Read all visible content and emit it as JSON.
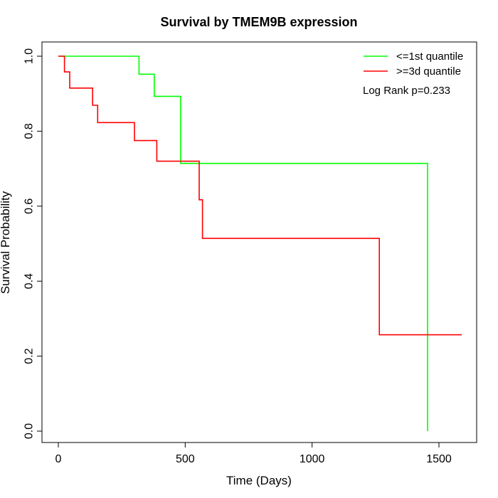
{
  "chart_data": {
    "type": "line",
    "title": "Survival by TMEM9B expression",
    "xlabel": "Time (Days)",
    "ylabel": "Survival Probability",
    "xlim": [
      0,
      1600
    ],
    "ylim": [
      0,
      1
    ],
    "xticks": [
      0,
      500,
      1000,
      1500
    ],
    "yticks": [
      0.0,
      0.2,
      0.4,
      0.6,
      0.8,
      1.0
    ],
    "ytick_labels": [
      "0.0",
      "0.2",
      "0.4",
      "0.6",
      "0.8",
      "1.0"
    ],
    "grid": false,
    "legend_position": "top-right",
    "annotation": "Log Rank p=0.233",
    "series": [
      {
        "name": "<=1st quantile",
        "color": "#00ff00",
        "step": true,
        "x": [
          0,
          318,
          318,
          378,
          378,
          482,
          482,
          1455,
          1455
        ],
        "y": [
          1.0,
          1.0,
          0.952,
          0.952,
          0.893,
          0.893,
          0.714,
          0.714,
          0.0
        ]
      },
      {
        "name": ">=3d quantile",
        "color": "#ff0000",
        "step": true,
        "x": [
          0,
          24,
          24,
          45,
          45,
          135,
          135,
          155,
          155,
          300,
          300,
          388,
          388,
          555,
          555,
          568,
          568,
          1265,
          1265,
          1590
        ],
        "y": [
          1.0,
          1.0,
          0.958,
          0.958,
          0.915,
          0.915,
          0.869,
          0.869,
          0.823,
          0.823,
          0.775,
          0.775,
          0.72,
          0.72,
          0.617,
          0.617,
          0.514,
          0.514,
          0.257,
          0.257
        ]
      }
    ]
  }
}
